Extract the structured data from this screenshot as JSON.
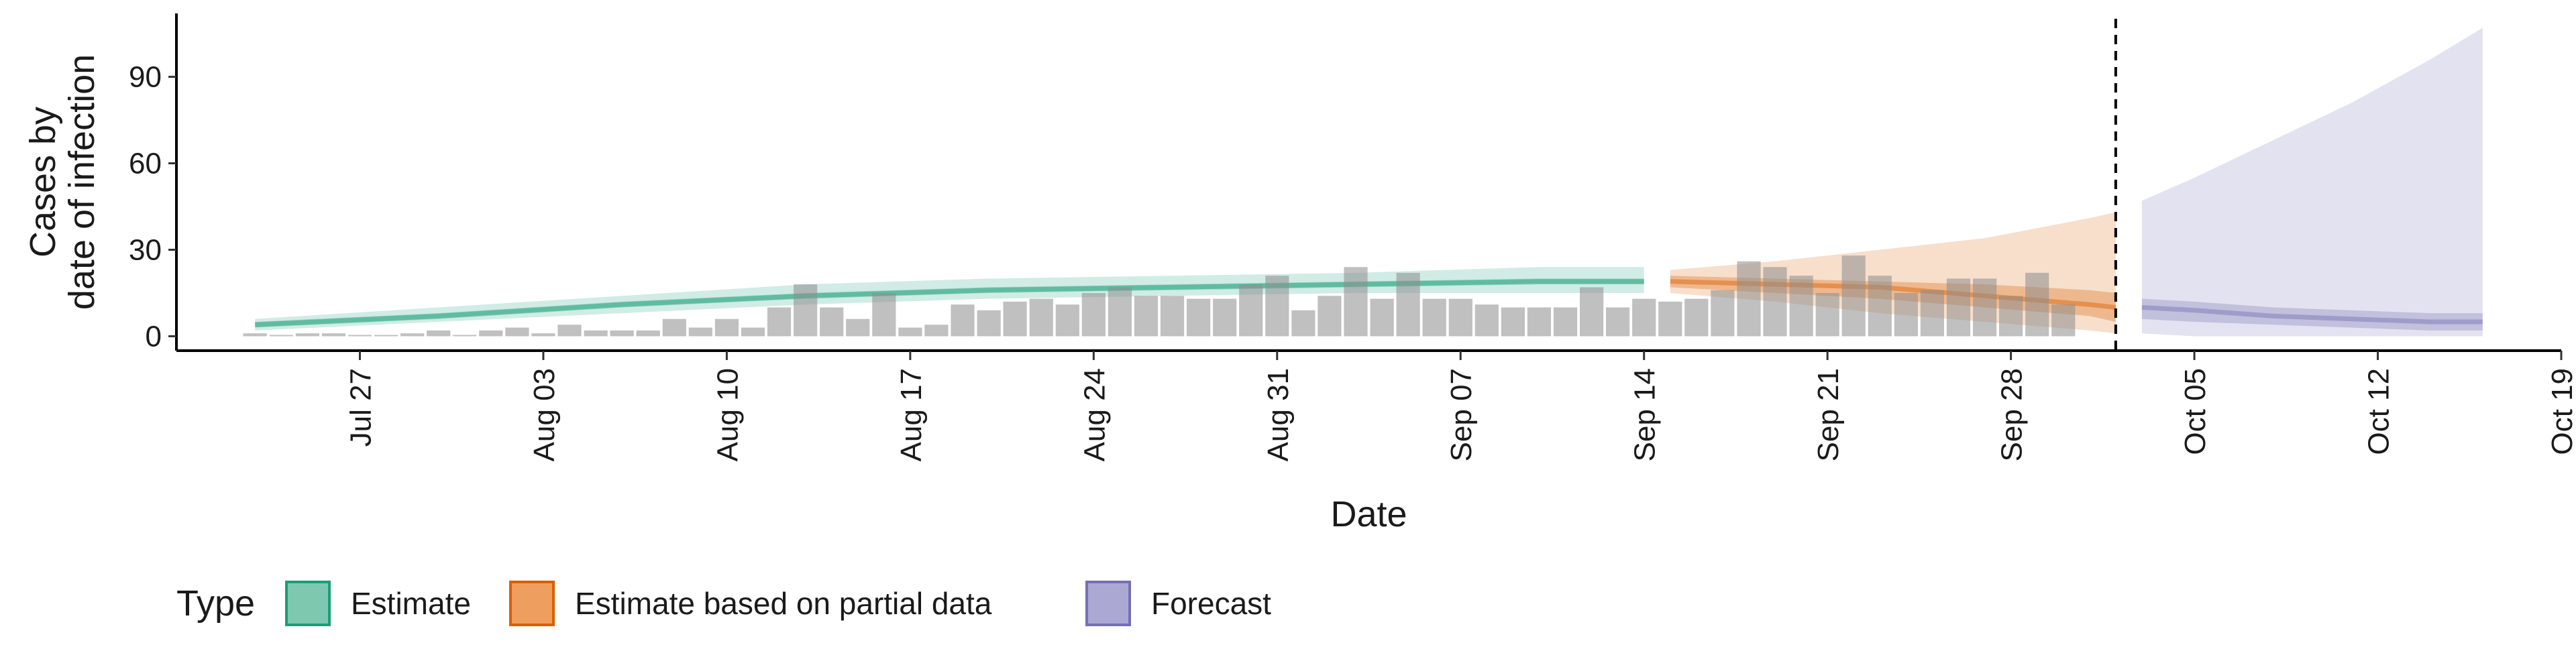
{
  "chart_data": {
    "type": "bar",
    "title": "",
    "xlabel": "Date",
    "ylabel_lines": [
      "Cases by",
      "date of infection"
    ],
    "ylim": [
      -5,
      112
    ],
    "yticks": [
      0,
      30,
      60,
      90
    ],
    "x_start": "2020-07-23",
    "xlim": [
      "2020-07-20",
      "2020-10-19"
    ],
    "x_ticks": [
      {
        "date": "2020-07-27",
        "label": "Jul 27"
      },
      {
        "date": "2020-08-03",
        "label": "Aug 03"
      },
      {
        "date": "2020-08-10",
        "label": "Aug 10"
      },
      {
        "date": "2020-08-17",
        "label": "Aug 17"
      },
      {
        "date": "2020-08-24",
        "label": "Aug 24"
      },
      {
        "date": "2020-08-31",
        "label": "Aug 31"
      },
      {
        "date": "2020-09-07",
        "label": "Sep 07"
      },
      {
        "date": "2020-09-14",
        "label": "Sep 14"
      },
      {
        "date": "2020-09-21",
        "label": "Sep 21"
      },
      {
        "date": "2020-09-28",
        "label": "Sep 28"
      },
      {
        "date": "2020-10-05",
        "label": "Oct 05"
      },
      {
        "date": "2020-10-12",
        "label": "Oct 12"
      },
      {
        "date": "2020-10-19",
        "label": "Oct 19"
      }
    ],
    "vline_date": "2020-10-02",
    "observed_cases": [
      1,
      0,
      1,
      1,
      0,
      0,
      1,
      2,
      0,
      2,
      3,
      1,
      4,
      2,
      2,
      2,
      6,
      3,
      6,
      3,
      10,
      18,
      10,
      6,
      15,
      3,
      4,
      11,
      9,
      12,
      13,
      11,
      15,
      17,
      14,
      14,
      13,
      13,
      18,
      21,
      9,
      14,
      24,
      13,
      22,
      13,
      13,
      11,
      10,
      10,
      10,
      17,
      10,
      13,
      12,
      13,
      16,
      26,
      24,
      21,
      15,
      28,
      21,
      15,
      16,
      20,
      20,
      14,
      22,
      11
    ],
    "series": [
      {
        "name": "Estimate",
        "color": "#1B9E77",
        "dates": [
          "2020-07-23",
          "2020-07-30",
          "2020-08-06",
          "2020-08-13",
          "2020-08-20",
          "2020-08-27",
          "2020-09-03",
          "2020-09-10",
          "2020-09-14"
        ],
        "median": [
          4,
          7,
          11,
          14,
          16,
          17,
          18,
          19,
          19
        ],
        "inner_low": [
          3,
          6,
          10,
          13,
          15,
          16,
          17,
          18,
          18
        ],
        "inner_high": [
          5,
          8,
          12,
          15,
          17,
          18,
          19,
          20,
          20
        ],
        "outer_low": [
          2,
          5,
          8,
          11,
          13,
          14,
          15,
          15,
          15
        ],
        "outer_high": [
          6,
          10,
          14,
          18,
          20,
          21,
          22,
          24,
          24
        ]
      },
      {
        "name": "Estimate based on partial data",
        "color": "#D95F02",
        "dates": [
          "2020-09-15",
          "2020-09-19",
          "2020-09-23",
          "2020-09-27",
          "2020-10-01",
          "2020-10-02"
        ],
        "median": [
          19,
          18,
          17,
          14,
          11,
          10
        ],
        "inner_low": [
          17,
          15,
          13,
          10,
          7,
          5
        ],
        "inner_high": [
          21,
          20,
          19,
          18,
          16,
          15
        ],
        "outer_low": [
          15,
          12,
          8,
          5,
          2,
          1
        ],
        "outer_high": [
          23,
          26,
          30,
          34,
          41,
          43
        ]
      },
      {
        "name": "Forecast",
        "color": "#7570B3",
        "dates": [
          "2020-10-03",
          "2020-10-05",
          "2020-10-08",
          "2020-10-11",
          "2020-10-14",
          "2020-10-16"
        ],
        "median": [
          10,
          9,
          7,
          6,
          5,
          5
        ],
        "inner_low": [
          6,
          5,
          4,
          3,
          2,
          2
        ],
        "inner_high": [
          13,
          12,
          10,
          9,
          8,
          8
        ],
        "outer_low": [
          1,
          0,
          0,
          0,
          0,
          0
        ],
        "outer_high": [
          47,
          55,
          68,
          81,
          96,
          107
        ]
      }
    ],
    "legend": {
      "title": "Type",
      "position": "bottom",
      "entries": [
        {
          "label": "Estimate",
          "fill": "#7FC8B0",
          "stroke": "#1B9E77"
        },
        {
          "label": "Estimate based on partial data",
          "fill": "#EE9F60",
          "stroke": "#D95F02"
        },
        {
          "label": "Forecast",
          "fill": "#ABA8D4",
          "stroke": "#7570B3"
        }
      ]
    }
  }
}
